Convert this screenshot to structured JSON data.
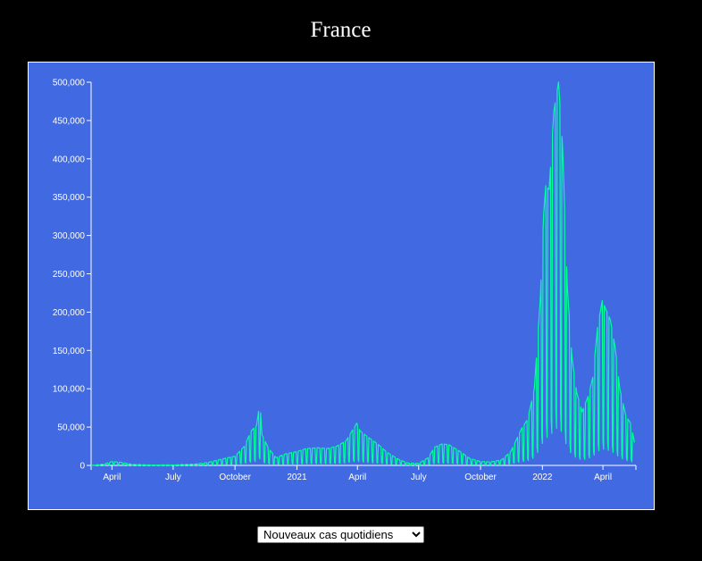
{
  "page": {
    "title": "France"
  },
  "controls": {
    "metric_select": {
      "selected": "Nouveaux cas quotidiens",
      "options": [
        "Nouveaux cas quotidiens"
      ]
    }
  },
  "colors": {
    "background": "#000000",
    "plot_background": "#4169e1",
    "line": "#00ff9f",
    "axis": "#ffffff"
  },
  "chart_data": {
    "type": "line",
    "title": "France",
    "xlabel": "",
    "ylabel": "",
    "x_range": [
      "2020-03-01",
      "2022-05-20"
    ],
    "ylim": [
      0,
      500000
    ],
    "y_ticks": [
      0,
      50000,
      100000,
      150000,
      200000,
      250000,
      300000,
      350000,
      400000,
      450000,
      500000
    ],
    "y_tick_labels": [
      "0",
      "50,000",
      "100,000",
      "150,000",
      "200,000",
      "250,000",
      "300,000",
      "350,000",
      "400,000",
      "450,000",
      "500,000"
    ],
    "x_ticks": [
      {
        "date": "2020-04-01",
        "label": "April"
      },
      {
        "date": "2020-07-01",
        "label": "July"
      },
      {
        "date": "2020-10-01",
        "label": "October"
      },
      {
        "date": "2021-01-01",
        "label": "2021"
      },
      {
        "date": "2021-04-01",
        "label": "April"
      },
      {
        "date": "2021-07-01",
        "label": "July"
      },
      {
        "date": "2021-10-01",
        "label": "October"
      },
      {
        "date": "2022-01-01",
        "label": "2022"
      },
      {
        "date": "2022-04-01",
        "label": "April"
      }
    ],
    "grid": false,
    "legend": "none",
    "series": [
      {
        "points": [
          [
            "2020-03-01",
            0
          ],
          [
            "2020-03-20",
            1500
          ],
          [
            "2020-04-01",
            5000
          ],
          [
            "2020-04-15",
            4000
          ],
          [
            "2020-05-01",
            1200
          ],
          [
            "2020-06-01",
            500
          ],
          [
            "2020-07-01",
            600
          ],
          [
            "2020-08-01",
            1500
          ],
          [
            "2020-08-20",
            3500
          ],
          [
            "2020-09-01",
            6000
          ],
          [
            "2020-09-15",
            9000
          ],
          [
            "2020-10-01",
            12000
          ],
          [
            "2020-10-15",
            25000
          ],
          [
            "2020-10-25",
            45000
          ],
          [
            "2020-11-02",
            52000
          ],
          [
            "2020-11-07",
            83000
          ],
          [
            "2020-11-10",
            40000
          ],
          [
            "2020-11-20",
            22000
          ],
          [
            "2020-12-01",
            10000
          ],
          [
            "2020-12-15",
            15000
          ],
          [
            "2021-01-01",
            18000
          ],
          [
            "2021-01-15",
            22000
          ],
          [
            "2021-02-01",
            23000
          ],
          [
            "2021-02-15",
            22000
          ],
          [
            "2021-03-01",
            25000
          ],
          [
            "2021-03-15",
            32000
          ],
          [
            "2021-03-31",
            55000
          ],
          [
            "2021-04-05",
            45000
          ],
          [
            "2021-04-15",
            38000
          ],
          [
            "2021-05-01",
            28000
          ],
          [
            "2021-05-15",
            17000
          ],
          [
            "2021-06-01",
            8000
          ],
          [
            "2021-06-15",
            3000
          ],
          [
            "2021-07-01",
            2500
          ],
          [
            "2021-07-15",
            10000
          ],
          [
            "2021-07-25",
            24000
          ],
          [
            "2021-08-05",
            28000
          ],
          [
            "2021-08-15",
            27000
          ],
          [
            "2021-09-01",
            18000
          ],
          [
            "2021-09-15",
            9000
          ],
          [
            "2021-10-01",
            5000
          ],
          [
            "2021-10-15",
            4500
          ],
          [
            "2021-11-01",
            7000
          ],
          [
            "2021-11-15",
            18000
          ],
          [
            "2021-12-01",
            48000
          ],
          [
            "2021-12-10",
            60000
          ],
          [
            "2021-12-20",
            100000
          ],
          [
            "2021-12-29",
            220000
          ],
          [
            "2022-01-03",
            330000
          ],
          [
            "2022-01-06",
            365000
          ],
          [
            "2022-01-11",
            360000
          ],
          [
            "2022-01-18",
            462000
          ],
          [
            "2022-01-25",
            500000
          ],
          [
            "2022-01-31",
            415000
          ],
          [
            "2022-02-07",
            233000
          ],
          [
            "2022-02-14",
            140000
          ],
          [
            "2022-02-21",
            95000
          ],
          [
            "2022-03-01",
            70000
          ],
          [
            "2022-03-10",
            90000
          ],
          [
            "2022-03-17",
            115000
          ],
          [
            "2022-03-24",
            180000
          ],
          [
            "2022-03-31",
            215000
          ],
          [
            "2022-04-07",
            200000
          ],
          [
            "2022-04-12",
            190000
          ],
          [
            "2022-04-19",
            155000
          ],
          [
            "2022-04-26",
            100000
          ],
          [
            "2022-05-05",
            65000
          ],
          [
            "2022-05-12",
            55000
          ],
          [
            "2022-05-18",
            30000
          ]
        ]
      }
    ]
  }
}
